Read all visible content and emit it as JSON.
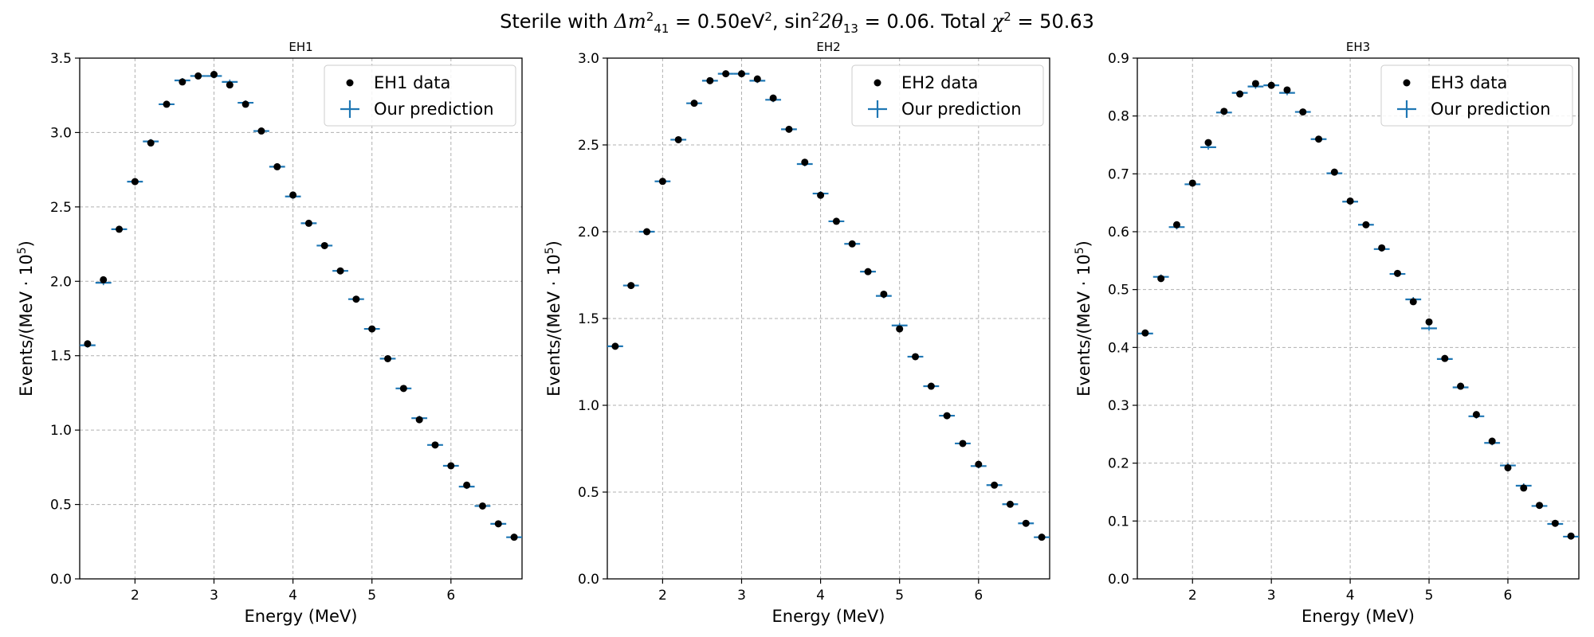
{
  "suptitle": {
    "prefix": "Sterile with",
    "dm_symbol": "Δm",
    "dm_sup": "2",
    "dm_sub": "41",
    "dm_value": " = 0.50eV",
    "dm_unit_sup": "2",
    "sin_text": ", sin",
    "sin_sup": "2",
    "theta_text": "2θ",
    "theta_sub": "13",
    "theta_value": " = 0.06. Total ",
    "chi": "χ",
    "chi_sup": "2",
    "chi_value": " = 50.63"
  },
  "colors": {
    "data": "#000000",
    "prediction": "#1f77b4",
    "grid": "#b0b0b0"
  },
  "chart_data": [
    {
      "type": "scatter",
      "title": "EH1",
      "xlabel": "Energy (MeV)",
      "ylabel_main": "Events/(MeV · 10",
      "ylabel_sup": "5",
      "ylabel_end": ")",
      "xlim": [
        1.3,
        6.9
      ],
      "ylim": [
        0,
        3.5
      ],
      "xticks": [
        2,
        3,
        4,
        5,
        6
      ],
      "yticks": [
        "0.0",
        "0.5",
        "1.0",
        "1.5",
        "2.0",
        "2.5",
        "3.0",
        "3.5"
      ],
      "grid": true,
      "legend": "top-right",
      "x": [
        1.4,
        1.6,
        1.8,
        2.0,
        2.2,
        2.4,
        2.6,
        2.8,
        3.0,
        3.2,
        3.4,
        3.6,
        3.8,
        4.0,
        4.2,
        4.4,
        4.6,
        4.8,
        5.0,
        5.2,
        5.4,
        5.6,
        5.8,
        6.0,
        6.2,
        6.4,
        6.6,
        6.8
      ],
      "series": [
        {
          "name": "EH1 data",
          "marker": "dot",
          "values": [
            1.58,
            2.01,
            2.35,
            2.67,
            2.93,
            3.19,
            3.34,
            3.38,
            3.39,
            3.32,
            3.19,
            3.01,
            2.77,
            2.58,
            2.39,
            2.24,
            2.07,
            1.88,
            1.68,
            1.48,
            1.28,
            1.07,
            0.9,
            0.76,
            0.63,
            0.49,
            0.37,
            0.28
          ]
        },
        {
          "name": "Our prediction",
          "marker": "cross",
          "values": [
            1.57,
            1.99,
            2.35,
            2.67,
            2.94,
            3.19,
            3.35,
            3.38,
            3.38,
            3.34,
            3.2,
            3.01,
            2.77,
            2.57,
            2.39,
            2.24,
            2.07,
            1.88,
            1.68,
            1.48,
            1.28,
            1.08,
            0.9,
            0.76,
            0.62,
            0.49,
            0.37,
            0.28
          ]
        }
      ]
    },
    {
      "type": "scatter",
      "title": "EH2",
      "xlabel": "Energy (MeV)",
      "ylabel_main": "Events/(MeV · 10",
      "ylabel_sup": "5",
      "ylabel_end": ")",
      "xlim": [
        1.3,
        6.9
      ],
      "ylim": [
        0,
        3.0
      ],
      "xticks": [
        2,
        3,
        4,
        5,
        6
      ],
      "yticks": [
        "0.0",
        "0.5",
        "1.0",
        "1.5",
        "2.0",
        "2.5",
        "3.0"
      ],
      "grid": true,
      "legend": "top-right",
      "x": [
        1.4,
        1.6,
        1.8,
        2.0,
        2.2,
        2.4,
        2.6,
        2.8,
        3.0,
        3.2,
        3.4,
        3.6,
        3.8,
        4.0,
        4.2,
        4.4,
        4.6,
        4.8,
        5.0,
        5.2,
        5.4,
        5.6,
        5.8,
        6.0,
        6.2,
        6.4,
        6.6,
        6.8
      ],
      "series": [
        {
          "name": "EH2 data",
          "marker": "dot",
          "values": [
            1.34,
            1.69,
            2.0,
            2.29,
            2.53,
            2.74,
            2.87,
            2.91,
            2.91,
            2.88,
            2.77,
            2.59,
            2.4,
            2.21,
            2.06,
            1.93,
            1.77,
            1.64,
            1.44,
            1.28,
            1.11,
            0.94,
            0.78,
            0.66,
            0.54,
            0.43,
            0.32,
            0.24
          ]
        },
        {
          "name": "Our prediction",
          "marker": "cross",
          "values": [
            1.34,
            1.69,
            2.0,
            2.29,
            2.53,
            2.74,
            2.87,
            2.91,
            2.91,
            2.87,
            2.76,
            2.59,
            2.39,
            2.22,
            2.06,
            1.93,
            1.77,
            1.63,
            1.46,
            1.28,
            1.11,
            0.94,
            0.78,
            0.65,
            0.54,
            0.43,
            0.32,
            0.24
          ]
        }
      ]
    },
    {
      "type": "scatter",
      "title": "EH3",
      "xlabel": "Energy (MeV)",
      "ylabel_main": "Events/(MeV · 10",
      "ylabel_sup": "5",
      "ylabel_end": ")",
      "xlim": [
        1.3,
        6.9
      ],
      "ylim": [
        0,
        0.9
      ],
      "xticks": [
        2,
        3,
        4,
        5,
        6
      ],
      "yticks": [
        "0.0",
        "0.1",
        "0.2",
        "0.3",
        "0.4",
        "0.5",
        "0.6",
        "0.7",
        "0.8",
        "0.9"
      ],
      "grid": true,
      "legend": "top-right",
      "x": [
        1.4,
        1.6,
        1.8,
        2.0,
        2.2,
        2.4,
        2.6,
        2.8,
        3.0,
        3.2,
        3.4,
        3.6,
        3.8,
        4.0,
        4.2,
        4.4,
        4.6,
        4.8,
        5.0,
        5.2,
        5.4,
        5.6,
        5.8,
        6.0,
        6.2,
        6.4,
        6.6,
        6.8
      ],
      "series": [
        {
          "name": "EH3 data",
          "marker": "dot",
          "values": [
            0.425,
            0.519,
            0.612,
            0.684,
            0.754,
            0.808,
            0.838,
            0.856,
            0.853,
            0.845,
            0.807,
            0.76,
            0.703,
            0.653,
            0.612,
            0.572,
            0.528,
            0.479,
            0.444,
            0.381,
            0.333,
            0.284,
            0.238,
            0.192,
            0.157,
            0.127,
            0.096,
            0.074
          ]
        },
        {
          "name": "Our prediction",
          "marker": "cross",
          "values": [
            0.424,
            0.522,
            0.608,
            0.682,
            0.746,
            0.806,
            0.84,
            0.851,
            0.853,
            0.84,
            0.807,
            0.76,
            0.701,
            0.652,
            0.612,
            0.57,
            0.527,
            0.483,
            0.433,
            0.38,
            0.331,
            0.281,
            0.235,
            0.196,
            0.161,
            0.126,
            0.095,
            0.073
          ]
        }
      ]
    }
  ]
}
